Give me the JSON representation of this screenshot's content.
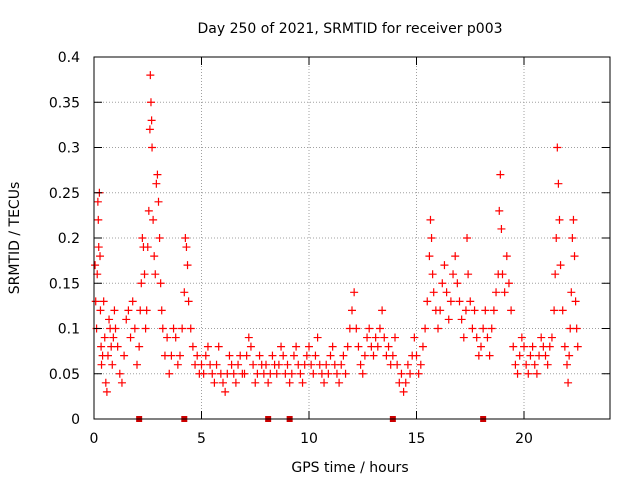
{
  "chart_data": {
    "type": "scatter",
    "title": "Day 250 of 2021, SRMTID for receiver p003",
    "xlabel": "GPS time / hours",
    "ylabel": "SRMTID / TECUs",
    "xlim": [
      0,
      24
    ],
    "ylim": [
      0,
      0.4
    ],
    "x_ticks": [
      0,
      5,
      10,
      15,
      20
    ],
    "x_tick_labels": [
      "0",
      "5",
      "10",
      "15",
      "20"
    ],
    "y_ticks": [
      0,
      0.05,
      0.1,
      0.15,
      0.2,
      0.25,
      0.3,
      0.35,
      0.4
    ],
    "y_tick_labels": [
      "0",
      "0.05",
      "0.1",
      "0.15",
      "0.2",
      "0.25",
      "0.3",
      "0.35",
      "0.4"
    ],
    "grid": true,
    "marker": "+",
    "marker_color": "#ff0000",
    "series": [
      {
        "name": "SRMTID",
        "points": [
          [
            0.05,
            0.17
          ],
          [
            0.08,
            0.13
          ],
          [
            0.12,
            0.1
          ],
          [
            0.15,
            0.16
          ],
          [
            0.18,
            0.24
          ],
          [
            0.2,
            0.22
          ],
          [
            0.22,
            0.19
          ],
          [
            0.25,
            0.25
          ],
          [
            0.28,
            0.18
          ],
          [
            0.3,
            0.12
          ],
          [
            0.33,
            0.08
          ],
          [
            0.35,
            0.06
          ],
          [
            0.4,
            0.07
          ],
          [
            0.45,
            0.13
          ],
          [
            0.5,
            0.09
          ],
          [
            0.55,
            0.04
          ],
          [
            0.6,
            0.03
          ],
          [
            0.65,
            0.07
          ],
          [
            0.7,
            0.11
          ],
          [
            0.75,
            0.1
          ],
          [
            0.8,
            0.08
          ],
          [
            0.85,
            0.06
          ],
          [
            0.9,
            0.09
          ],
          [
            0.95,
            0.12
          ],
          [
            1.0,
            0.1
          ],
          [
            1.1,
            0.08
          ],
          [
            1.2,
            0.05
          ],
          [
            1.3,
            0.04
          ],
          [
            1.4,
            0.07
          ],
          [
            1.5,
            0.11
          ],
          [
            1.6,
            0.12
          ],
          [
            1.7,
            0.09
          ],
          [
            1.8,
            0.13
          ],
          [
            1.9,
            0.1
          ],
          [
            2.0,
            0.06
          ],
          [
            2.1,
            0.08
          ],
          [
            2.15,
            0.12
          ],
          [
            2.2,
            0.15
          ],
          [
            2.25,
            0.2
          ],
          [
            2.3,
            0.19
          ],
          [
            2.35,
            0.16
          ],
          [
            2.4,
            0.1
          ],
          [
            2.45,
            0.12
          ],
          [
            2.5,
            0.19
          ],
          [
            2.55,
            0.23
          ],
          [
            2.6,
            0.32
          ],
          [
            2.62,
            0.38
          ],
          [
            2.65,
            0.35
          ],
          [
            2.68,
            0.33
          ],
          [
            2.7,
            0.3
          ],
          [
            2.75,
            0.22
          ],
          [
            2.8,
            0.18
          ],
          [
            2.85,
            0.16
          ],
          [
            2.9,
            0.26
          ],
          [
            2.95,
            0.27
          ],
          [
            3.0,
            0.24
          ],
          [
            3.05,
            0.2
          ],
          [
            3.1,
            0.15
          ],
          [
            3.15,
            0.12
          ],
          [
            3.2,
            0.1
          ],
          [
            3.3,
            0.07
          ],
          [
            3.4,
            0.09
          ],
          [
            3.5,
            0.05
          ],
          [
            3.6,
            0.07
          ],
          [
            3.7,
            0.1
          ],
          [
            3.8,
            0.09
          ],
          [
            3.9,
            0.06
          ],
          [
            4.0,
            0.07
          ],
          [
            4.1,
            0.1
          ],
          [
            4.2,
            0.14
          ],
          [
            4.25,
            0.2
          ],
          [
            4.3,
            0.19
          ],
          [
            4.35,
            0.17
          ],
          [
            4.4,
            0.13
          ],
          [
            4.5,
            0.1
          ],
          [
            4.6,
            0.08
          ],
          [
            4.7,
            0.06
          ],
          [
            4.8,
            0.07
          ],
          [
            4.9,
            0.05
          ],
          [
            5.0,
            0.06
          ],
          [
            5.1,
            0.05
          ],
          [
            5.2,
            0.07
          ],
          [
            5.3,
            0.08
          ],
          [
            5.4,
            0.06
          ],
          [
            5.5,
            0.05
          ],
          [
            5.6,
            0.04
          ],
          [
            5.7,
            0.06
          ],
          [
            5.8,
            0.08
          ],
          [
            5.9,
            0.05
          ],
          [
            6.0,
            0.04
          ],
          [
            6.1,
            0.03
          ],
          [
            6.2,
            0.05
          ],
          [
            6.3,
            0.07
          ],
          [
            6.4,
            0.06
          ],
          [
            6.5,
            0.05
          ],
          [
            6.6,
            0.04
          ],
          [
            6.7,
            0.06
          ],
          [
            6.8,
            0.07
          ],
          [
            6.9,
            0.05
          ],
          [
            7.0,
            0.05
          ],
          [
            7.1,
            0.07
          ],
          [
            7.2,
            0.09
          ],
          [
            7.3,
            0.08
          ],
          [
            7.4,
            0.06
          ],
          [
            7.5,
            0.04
          ],
          [
            7.6,
            0.05
          ],
          [
            7.7,
            0.07
          ],
          [
            7.8,
            0.06
          ],
          [
            7.9,
            0.05
          ],
          [
            8.0,
            0.06
          ],
          [
            8.1,
            0.04
          ],
          [
            8.2,
            0.05
          ],
          [
            8.3,
            0.07
          ],
          [
            8.4,
            0.06
          ],
          [
            8.5,
            0.05
          ],
          [
            8.6,
            0.06
          ],
          [
            8.7,
            0.08
          ],
          [
            8.8,
            0.07
          ],
          [
            8.9,
            0.05
          ],
          [
            9.0,
            0.06
          ],
          [
            9.1,
            0.04
          ],
          [
            9.2,
            0.05
          ],
          [
            9.3,
            0.07
          ],
          [
            9.4,
            0.08
          ],
          [
            9.5,
            0.06
          ],
          [
            9.6,
            0.05
          ],
          [
            9.7,
            0.04
          ],
          [
            9.8,
            0.06
          ],
          [
            9.9,
            0.07
          ],
          [
            10.0,
            0.08
          ],
          [
            10.1,
            0.06
          ],
          [
            10.2,
            0.05
          ],
          [
            10.3,
            0.07
          ],
          [
            10.4,
            0.09
          ],
          [
            10.5,
            0.06
          ],
          [
            10.6,
            0.05
          ],
          [
            10.7,
            0.04
          ],
          [
            10.8,
            0.06
          ],
          [
            10.9,
            0.05
          ],
          [
            11.0,
            0.07
          ],
          [
            11.1,
            0.08
          ],
          [
            11.2,
            0.06
          ],
          [
            11.3,
            0.05
          ],
          [
            11.4,
            0.04
          ],
          [
            11.5,
            0.06
          ],
          [
            11.6,
            0.07
          ],
          [
            11.7,
            0.05
          ],
          [
            11.8,
            0.08
          ],
          [
            11.9,
            0.1
          ],
          [
            12.0,
            0.12
          ],
          [
            12.1,
            0.14
          ],
          [
            12.2,
            0.1
          ],
          [
            12.3,
            0.08
          ],
          [
            12.4,
            0.06
          ],
          [
            12.5,
            0.05
          ],
          [
            12.6,
            0.07
          ],
          [
            12.7,
            0.09
          ],
          [
            12.8,
            0.1
          ],
          [
            12.9,
            0.08
          ],
          [
            13.0,
            0.07
          ],
          [
            13.1,
            0.09
          ],
          [
            13.2,
            0.08
          ],
          [
            13.3,
            0.1
          ],
          [
            13.4,
            0.12
          ],
          [
            13.5,
            0.09
          ],
          [
            13.6,
            0.07
          ],
          [
            13.7,
            0.08
          ],
          [
            13.8,
            0.06
          ],
          [
            13.9,
            0.07
          ],
          [
            14.0,
            0.09
          ],
          [
            14.1,
            0.06
          ],
          [
            14.2,
            0.04
          ],
          [
            14.3,
            0.05
          ],
          [
            14.4,
            0.03
          ],
          [
            14.5,
            0.04
          ],
          [
            14.6,
            0.06
          ],
          [
            14.7,
            0.05
          ],
          [
            14.8,
            0.07
          ],
          [
            14.9,
            0.09
          ],
          [
            15.0,
            0.07
          ],
          [
            15.1,
            0.05
          ],
          [
            15.2,
            0.06
          ],
          [
            15.3,
            0.08
          ],
          [
            15.4,
            0.1
          ],
          [
            15.5,
            0.13
          ],
          [
            15.6,
            0.18
          ],
          [
            15.65,
            0.22
          ],
          [
            15.7,
            0.2
          ],
          [
            15.75,
            0.16
          ],
          [
            15.8,
            0.14
          ],
          [
            15.9,
            0.12
          ],
          [
            16.0,
            0.1
          ],
          [
            16.1,
            0.12
          ],
          [
            16.2,
            0.15
          ],
          [
            16.3,
            0.17
          ],
          [
            16.4,
            0.14
          ],
          [
            16.5,
            0.11
          ],
          [
            16.6,
            0.13
          ],
          [
            16.7,
            0.16
          ],
          [
            16.8,
            0.18
          ],
          [
            16.9,
            0.15
          ],
          [
            17.0,
            0.13
          ],
          [
            17.1,
            0.11
          ],
          [
            17.2,
            0.09
          ],
          [
            17.3,
            0.12
          ],
          [
            17.35,
            0.2
          ],
          [
            17.4,
            0.16
          ],
          [
            17.5,
            0.13
          ],
          [
            17.6,
            0.1
          ],
          [
            17.7,
            0.12
          ],
          [
            17.8,
            0.09
          ],
          [
            17.9,
            0.07
          ],
          [
            18.0,
            0.08
          ],
          [
            18.1,
            0.1
          ],
          [
            18.2,
            0.12
          ],
          [
            18.3,
            0.09
          ],
          [
            18.4,
            0.07
          ],
          [
            18.5,
            0.1
          ],
          [
            18.6,
            0.12
          ],
          [
            18.7,
            0.14
          ],
          [
            18.8,
            0.16
          ],
          [
            18.85,
            0.23
          ],
          [
            18.9,
            0.27
          ],
          [
            18.95,
            0.21
          ],
          [
            19.0,
            0.16
          ],
          [
            19.1,
            0.14
          ],
          [
            19.2,
            0.18
          ],
          [
            19.3,
            0.15
          ],
          [
            19.4,
            0.12
          ],
          [
            19.5,
            0.08
          ],
          [
            19.6,
            0.06
          ],
          [
            19.7,
            0.05
          ],
          [
            19.8,
            0.07
          ],
          [
            19.9,
            0.09
          ],
          [
            20.0,
            0.08
          ],
          [
            20.1,
            0.06
          ],
          [
            20.2,
            0.05
          ],
          [
            20.3,
            0.07
          ],
          [
            20.4,
            0.08
          ],
          [
            20.5,
            0.06
          ],
          [
            20.6,
            0.05
          ],
          [
            20.7,
            0.07
          ],
          [
            20.8,
            0.09
          ],
          [
            20.9,
            0.08
          ],
          [
            21.0,
            0.07
          ],
          [
            21.1,
            0.06
          ],
          [
            21.2,
            0.08
          ],
          [
            21.3,
            0.09
          ],
          [
            21.4,
            0.12
          ],
          [
            21.45,
            0.16
          ],
          [
            21.5,
            0.2
          ],
          [
            21.55,
            0.3
          ],
          [
            21.6,
            0.26
          ],
          [
            21.65,
            0.22
          ],
          [
            21.7,
            0.17
          ],
          [
            21.8,
            0.12
          ],
          [
            21.9,
            0.08
          ],
          [
            22.0,
            0.06
          ],
          [
            22.05,
            0.04
          ],
          [
            22.1,
            0.07
          ],
          [
            22.15,
            0.1
          ],
          [
            22.2,
            0.14
          ],
          [
            22.25,
            0.2
          ],
          [
            22.3,
            0.22
          ],
          [
            22.35,
            0.18
          ],
          [
            22.4,
            0.13
          ],
          [
            22.45,
            0.1
          ],
          [
            22.5,
            0.08
          ]
        ]
      },
      {
        "name": "missing data markers",
        "points": [
          [
            2.1,
            0
          ],
          [
            4.2,
            0
          ],
          [
            8.1,
            0
          ],
          [
            9.1,
            0
          ],
          [
            13.9,
            0
          ],
          [
            18.1,
            0
          ]
        ]
      }
    ]
  }
}
